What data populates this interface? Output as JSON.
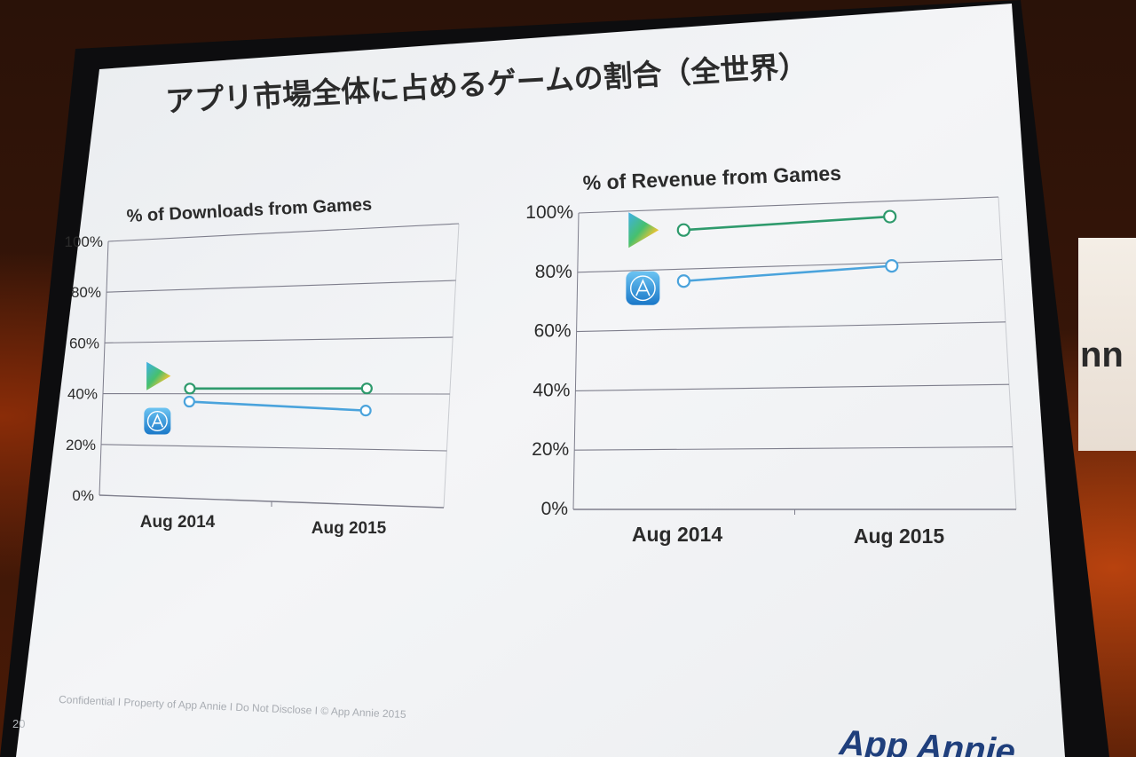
{
  "slide": {
    "title": "アプリ市場全体に占めるゲームの割合（全世界）",
    "footer": "Confidential  I  Property of App Annie  I  Do Not Disclose  I  © App Annie 2015",
    "page_number": "20",
    "logo_text": "App Annie",
    "right_screen_fragment": "nn"
  },
  "colors": {
    "google_play": "#2e9a6c",
    "app_store": "#4aa3dc",
    "gridline": "#7e7e8c",
    "text": "#2b2b2b"
  },
  "icons": [
    "google-play-icon",
    "app-store-icon"
  ],
  "chart_data": [
    {
      "type": "line",
      "title": "% of Downloads from Games",
      "categories": [
        "Aug 2014",
        "Aug 2015"
      ],
      "yticks": [
        "0%",
        "20%",
        "40%",
        "60%",
        "80%",
        "100%"
      ],
      "ylim": [
        0,
        100
      ],
      "grid": true,
      "series": [
        {
          "icon": "google-play-icon",
          "color": "#2e9a6c",
          "values": [
            42,
            42
          ]
        },
        {
          "icon": "app-store-icon",
          "color": "#4aa3dc",
          "values": [
            37,
            34
          ]
        }
      ]
    },
    {
      "type": "line",
      "title": "% of Revenue from Games",
      "categories": [
        "Aug 2014",
        "Aug 2015"
      ],
      "yticks": [
        "0%",
        "20%",
        "40%",
        "60%",
        "80%",
        "100%"
      ],
      "ylim": [
        0,
        100
      ],
      "grid": true,
      "series": [
        {
          "icon": "google-play-icon",
          "color": "#2e9a6c",
          "values": [
            93,
            95
          ]
        },
        {
          "icon": "app-store-icon",
          "color": "#4aa3dc",
          "values": [
            76,
            79
          ]
        }
      ]
    }
  ]
}
